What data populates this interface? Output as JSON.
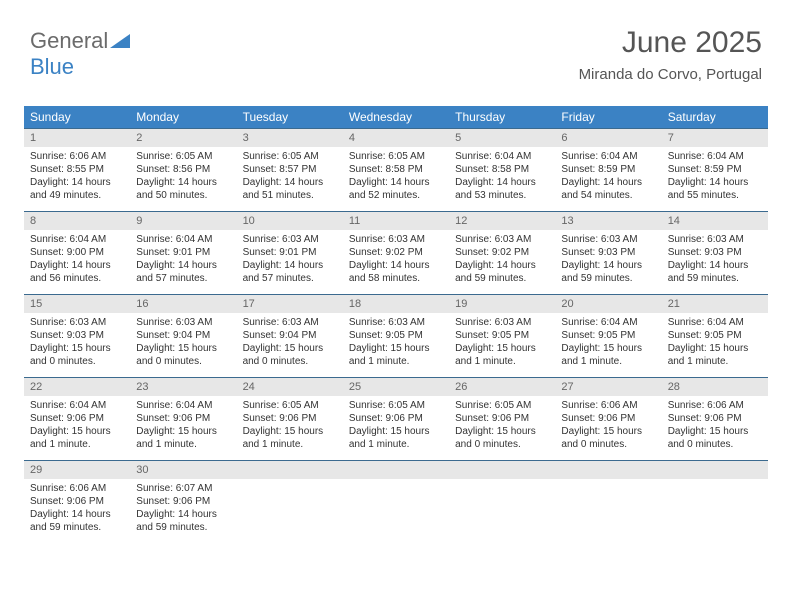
{
  "logo": {
    "word1": "General",
    "word2": "Blue"
  },
  "header": {
    "month": "June 2025",
    "location": "Miranda do Corvo, Portugal"
  },
  "colors": {
    "header_bg": "#3b82c4",
    "header_text": "#ffffff",
    "daynum_bg": "#e7e7e7",
    "row_border": "#3b6a8f",
    "body_text": "#333333",
    "title_text": "#555555"
  },
  "weekdays": [
    "Sunday",
    "Monday",
    "Tuesday",
    "Wednesday",
    "Thursday",
    "Friday",
    "Saturday"
  ],
  "weeks": [
    [
      {
        "n": "1",
        "sr": "Sunrise: 6:06 AM",
        "ss": "Sunset: 8:55 PM",
        "d1": "Daylight: 14 hours",
        "d2": "and 49 minutes."
      },
      {
        "n": "2",
        "sr": "Sunrise: 6:05 AM",
        "ss": "Sunset: 8:56 PM",
        "d1": "Daylight: 14 hours",
        "d2": "and 50 minutes."
      },
      {
        "n": "3",
        "sr": "Sunrise: 6:05 AM",
        "ss": "Sunset: 8:57 PM",
        "d1": "Daylight: 14 hours",
        "d2": "and 51 minutes."
      },
      {
        "n": "4",
        "sr": "Sunrise: 6:05 AM",
        "ss": "Sunset: 8:58 PM",
        "d1": "Daylight: 14 hours",
        "d2": "and 52 minutes."
      },
      {
        "n": "5",
        "sr": "Sunrise: 6:04 AM",
        "ss": "Sunset: 8:58 PM",
        "d1": "Daylight: 14 hours",
        "d2": "and 53 minutes."
      },
      {
        "n": "6",
        "sr": "Sunrise: 6:04 AM",
        "ss": "Sunset: 8:59 PM",
        "d1": "Daylight: 14 hours",
        "d2": "and 54 minutes."
      },
      {
        "n": "7",
        "sr": "Sunrise: 6:04 AM",
        "ss": "Sunset: 8:59 PM",
        "d1": "Daylight: 14 hours",
        "d2": "and 55 minutes."
      }
    ],
    [
      {
        "n": "8",
        "sr": "Sunrise: 6:04 AM",
        "ss": "Sunset: 9:00 PM",
        "d1": "Daylight: 14 hours",
        "d2": "and 56 minutes."
      },
      {
        "n": "9",
        "sr": "Sunrise: 6:04 AM",
        "ss": "Sunset: 9:01 PM",
        "d1": "Daylight: 14 hours",
        "d2": "and 57 minutes."
      },
      {
        "n": "10",
        "sr": "Sunrise: 6:03 AM",
        "ss": "Sunset: 9:01 PM",
        "d1": "Daylight: 14 hours",
        "d2": "and 57 minutes."
      },
      {
        "n": "11",
        "sr": "Sunrise: 6:03 AM",
        "ss": "Sunset: 9:02 PM",
        "d1": "Daylight: 14 hours",
        "d2": "and 58 minutes."
      },
      {
        "n": "12",
        "sr": "Sunrise: 6:03 AM",
        "ss": "Sunset: 9:02 PM",
        "d1": "Daylight: 14 hours",
        "d2": "and 59 minutes."
      },
      {
        "n": "13",
        "sr": "Sunrise: 6:03 AM",
        "ss": "Sunset: 9:03 PM",
        "d1": "Daylight: 14 hours",
        "d2": "and 59 minutes."
      },
      {
        "n": "14",
        "sr": "Sunrise: 6:03 AM",
        "ss": "Sunset: 9:03 PM",
        "d1": "Daylight: 14 hours",
        "d2": "and 59 minutes."
      }
    ],
    [
      {
        "n": "15",
        "sr": "Sunrise: 6:03 AM",
        "ss": "Sunset: 9:03 PM",
        "d1": "Daylight: 15 hours",
        "d2": "and 0 minutes."
      },
      {
        "n": "16",
        "sr": "Sunrise: 6:03 AM",
        "ss": "Sunset: 9:04 PM",
        "d1": "Daylight: 15 hours",
        "d2": "and 0 minutes."
      },
      {
        "n": "17",
        "sr": "Sunrise: 6:03 AM",
        "ss": "Sunset: 9:04 PM",
        "d1": "Daylight: 15 hours",
        "d2": "and 0 minutes."
      },
      {
        "n": "18",
        "sr": "Sunrise: 6:03 AM",
        "ss": "Sunset: 9:05 PM",
        "d1": "Daylight: 15 hours",
        "d2": "and 1 minute."
      },
      {
        "n": "19",
        "sr": "Sunrise: 6:03 AM",
        "ss": "Sunset: 9:05 PM",
        "d1": "Daylight: 15 hours",
        "d2": "and 1 minute."
      },
      {
        "n": "20",
        "sr": "Sunrise: 6:04 AM",
        "ss": "Sunset: 9:05 PM",
        "d1": "Daylight: 15 hours",
        "d2": "and 1 minute."
      },
      {
        "n": "21",
        "sr": "Sunrise: 6:04 AM",
        "ss": "Sunset: 9:05 PM",
        "d1": "Daylight: 15 hours",
        "d2": "and 1 minute."
      }
    ],
    [
      {
        "n": "22",
        "sr": "Sunrise: 6:04 AM",
        "ss": "Sunset: 9:06 PM",
        "d1": "Daylight: 15 hours",
        "d2": "and 1 minute."
      },
      {
        "n": "23",
        "sr": "Sunrise: 6:04 AM",
        "ss": "Sunset: 9:06 PM",
        "d1": "Daylight: 15 hours",
        "d2": "and 1 minute."
      },
      {
        "n": "24",
        "sr": "Sunrise: 6:05 AM",
        "ss": "Sunset: 9:06 PM",
        "d1": "Daylight: 15 hours",
        "d2": "and 1 minute."
      },
      {
        "n": "25",
        "sr": "Sunrise: 6:05 AM",
        "ss": "Sunset: 9:06 PM",
        "d1": "Daylight: 15 hours",
        "d2": "and 1 minute."
      },
      {
        "n": "26",
        "sr": "Sunrise: 6:05 AM",
        "ss": "Sunset: 9:06 PM",
        "d1": "Daylight: 15 hours",
        "d2": "and 0 minutes."
      },
      {
        "n": "27",
        "sr": "Sunrise: 6:06 AM",
        "ss": "Sunset: 9:06 PM",
        "d1": "Daylight: 15 hours",
        "d2": "and 0 minutes."
      },
      {
        "n": "28",
        "sr": "Sunrise: 6:06 AM",
        "ss": "Sunset: 9:06 PM",
        "d1": "Daylight: 15 hours",
        "d2": "and 0 minutes."
      }
    ],
    [
      {
        "n": "29",
        "sr": "Sunrise: 6:06 AM",
        "ss": "Sunset: 9:06 PM",
        "d1": "Daylight: 14 hours",
        "d2": "and 59 minutes."
      },
      {
        "n": "30",
        "sr": "Sunrise: 6:07 AM",
        "ss": "Sunset: 9:06 PM",
        "d1": "Daylight: 14 hours",
        "d2": "and 59 minutes."
      },
      {
        "n": "",
        "sr": "",
        "ss": "",
        "d1": "",
        "d2": ""
      },
      {
        "n": "",
        "sr": "",
        "ss": "",
        "d1": "",
        "d2": ""
      },
      {
        "n": "",
        "sr": "",
        "ss": "",
        "d1": "",
        "d2": ""
      },
      {
        "n": "",
        "sr": "",
        "ss": "",
        "d1": "",
        "d2": ""
      },
      {
        "n": "",
        "sr": "",
        "ss": "",
        "d1": "",
        "d2": ""
      }
    ]
  ]
}
